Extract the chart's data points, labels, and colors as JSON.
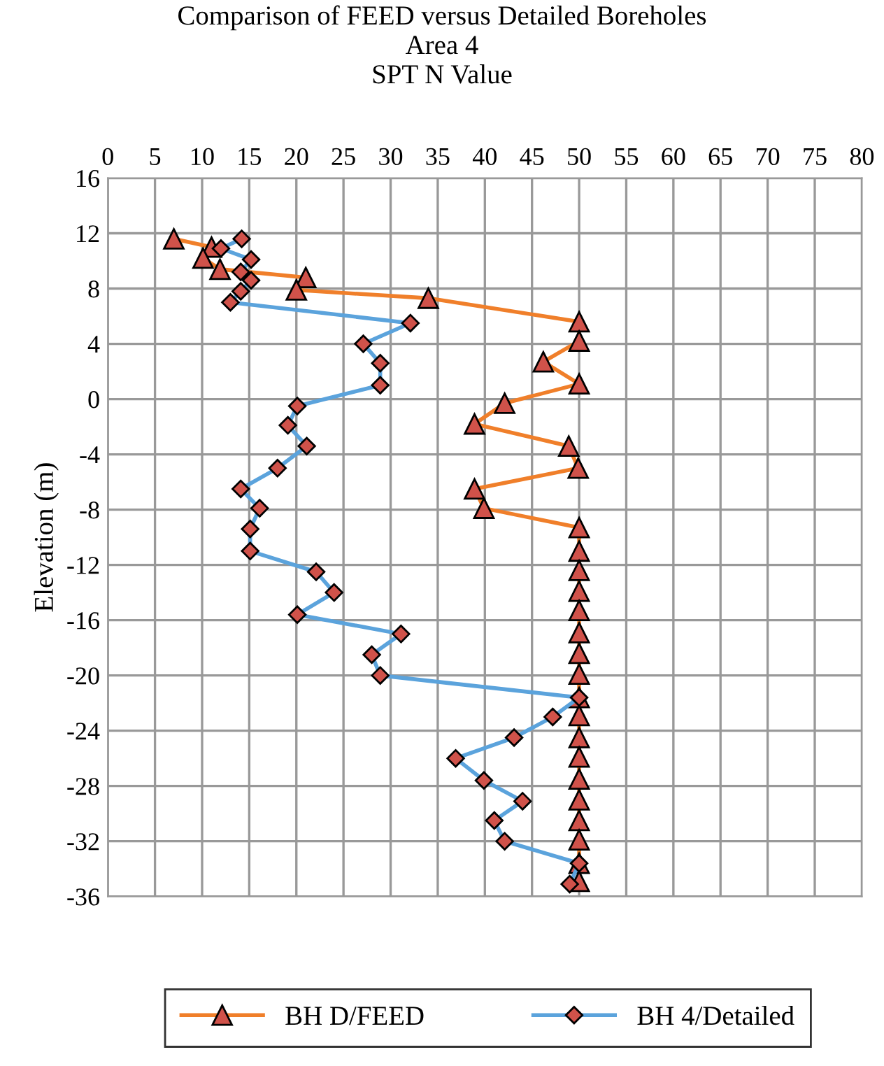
{
  "chart_data": {
    "type": "line",
    "title": "Comparison of FEED versus Detailed Boreholes\nArea 4\nSPT N Value",
    "ylabel": "Elevation (m)",
    "xlim": [
      0,
      80
    ],
    "xticks": [
      0,
      5,
      10,
      15,
      20,
      25,
      30,
      35,
      40,
      45,
      50,
      55,
      60,
      65,
      70,
      75,
      80
    ],
    "ylim": [
      -36,
      16
    ],
    "yticks": [
      16,
      12,
      8,
      4,
      0,
      -4,
      -8,
      -12,
      -16,
      -20,
      -24,
      -28,
      -32,
      -36
    ],
    "grid": true,
    "legend": "bottom",
    "line_style": "solid",
    "series": [
      {
        "name": "BH D/FEED",
        "color": "#f07f2a",
        "marker": "triangle",
        "x": [
          7,
          11,
          10.1,
          11.9,
          21,
          20,
          34,
          50,
          50,
          46.2,
          50,
          42.1,
          38.9,
          48.9,
          49.9,
          38.9,
          39.9,
          50,
          50,
          50,
          50,
          50,
          50,
          50,
          50,
          50,
          50,
          50,
          50,
          50,
          50,
          50,
          50,
          50,
          50
        ],
        "values": [
          11.6,
          11.0,
          10.2,
          9.4,
          8.8,
          7.9,
          7.3,
          5.6,
          4.2,
          2.7,
          1.1,
          -0.3,
          -1.8,
          -3.4,
          -5.0,
          -6.5,
          -7.9,
          -9.3,
          -11.0,
          -12.4,
          -13.9,
          -15.3,
          -16.9,
          -18.4,
          -19.9,
          -21.6,
          -22.9,
          -24.5,
          -25.9,
          -27.5,
          -29.0,
          -30.5,
          -31.9,
          -33.6,
          -34.9
        ]
      },
      {
        "name": "BH 4/Detailed",
        "color": "#5ba3dc",
        "marker": "diamond",
        "x": [
          14.2,
          12.0,
          15.2,
          14.1,
          15.2,
          14.1,
          13.0,
          32.1,
          27.1,
          28.9,
          28.9,
          20.1,
          19.1,
          21.1,
          18.0,
          14.1,
          16.1,
          15.1,
          15.1,
          22.1,
          24.0,
          20.1,
          31.1,
          28.0,
          28.9,
          50,
          47.2,
          43.1,
          36.9,
          39.9,
          44.0,
          41.0,
          42.1,
          50,
          49
        ],
        "values": [
          11.6,
          10.9,
          10.1,
          9.2,
          8.6,
          7.8,
          7.0,
          5.5,
          4.0,
          2.6,
          1.0,
          -0.5,
          -1.9,
          -3.4,
          -5.0,
          -6.5,
          -7.9,
          -9.4,
          -11.0,
          -12.5,
          -14.0,
          -15.6,
          -17.0,
          -18.5,
          -20.0,
          -21.6,
          -23.0,
          -24.5,
          -26.0,
          -27.6,
          -29.1,
          -30.5,
          -32.0,
          -33.6,
          -35.1
        ]
      }
    ]
  }
}
